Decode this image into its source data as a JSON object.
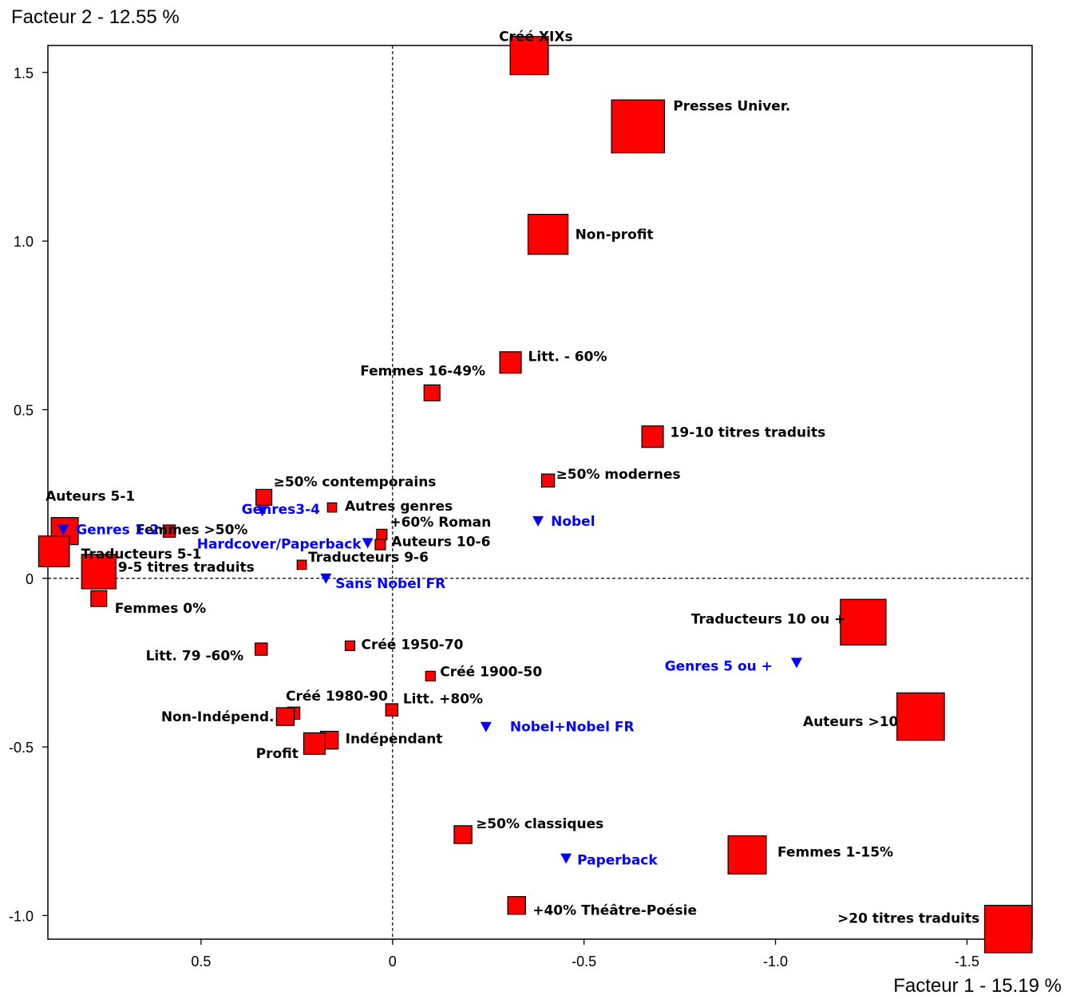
{
  "chart_data": {
    "type": "scatter",
    "title": "",
    "xlabel": "Facteur 1  -  15.19 %",
    "ylabel": "Facteur 2  -  12.55 %",
    "x_reversed": true,
    "xlim": [
      0.9,
      -1.67
    ],
    "ylim": [
      -1.07,
      1.58
    ],
    "x_ticks": [
      0.5,
      0,
      -0.5,
      -1.0,
      -1.5
    ],
    "x_tick_labels": [
      "0.5",
      "0",
      "-0.5",
      "-1.0",
      "-1.5"
    ],
    "y_ticks": [
      1.5,
      1.0,
      0.5,
      0,
      -0.5,
      -1.0
    ],
    "y_tick_labels": [
      "1.5",
      "1.0",
      "0.5",
      "0",
      "-0.5",
      "-1.0"
    ],
    "grid": false,
    "zero_lines": "dashed",
    "colors": {
      "active": "#ff0000",
      "supplementary": "#0000ff",
      "label_active": "#000000",
      "label_supplementary": "#0000ff"
    },
    "series": [
      {
        "kind": "active",
        "marker": "square",
        "points": [
          {
            "label": "Créé XIXs",
            "x": -0.357,
            "y": 1.55,
            "weight": 0.9
          },
          {
            "label": "Presses Univer.",
            "x": -0.641,
            "y": 1.34,
            "weight": 1.3
          },
          {
            "label": "Non-profit",
            "x": -0.406,
            "y": 1.02,
            "weight": 0.95
          },
          {
            "label": "Litt. - 60%",
            "x": -0.308,
            "y": 0.64,
            "weight": 0.45
          },
          {
            "label": "Femmes 16-49%",
            "x": -0.103,
            "y": 0.55,
            "weight": 0.3
          },
          {
            "label": "19-10 titres traduits",
            "x": -0.679,
            "y": 0.42,
            "weight": 0.45
          },
          {
            "label": "≥50% modernes",
            "x": -0.406,
            "y": 0.29,
            "weight": 0.22
          },
          {
            "label": "≥50% contemporains",
            "x": 0.336,
            "y": 0.24,
            "weight": 0.3
          },
          {
            "label": "Autres genres",
            "x": 0.158,
            "y": 0.21,
            "weight": 0.12
          },
          {
            "label": "Femmes >50%",
            "x": 0.583,
            "y": 0.14,
            "weight": 0.2
          },
          {
            "label": "+60% Roman",
            "x": 0.028,
            "y": 0.13,
            "weight": 0.15
          },
          {
            "label": "Auteurs 10-6",
            "x": 0.032,
            "y": 0.1,
            "weight": 0.15
          },
          {
            "label": "Auteurs 5-1",
            "x": 0.856,
            "y": 0.14,
            "weight": 0.6
          },
          {
            "label": "Traducteurs 5-1",
            "x": 0.884,
            "y": 0.08,
            "weight": 0.7
          },
          {
            "label": "9-5 titres traduits",
            "x": 0.767,
            "y": 0.02,
            "weight": 0.8
          },
          {
            "label": "Traducteurs 9-6",
            "x": 0.237,
            "y": 0.04,
            "weight": 0.12
          },
          {
            "label": "Femmes 0%",
            "x": 0.767,
            "y": -0.06,
            "weight": 0.3
          },
          {
            "label": "Créé 1950-70",
            "x": 0.111,
            "y": -0.2,
            "weight": 0.13
          },
          {
            "label": "Litt. 79 -60%",
            "x": 0.343,
            "y": -0.21,
            "weight": 0.2
          },
          {
            "label": "Créé 1900-50",
            "x": -0.099,
            "y": -0.29,
            "weight": 0.13
          },
          {
            "label": "Créé 1980-90",
            "x": 0.258,
            "y": -0.4,
            "weight": 0.2
          },
          {
            "label": "Litt. +80%",
            "x": 0.002,
            "y": -0.39,
            "weight": 0.2
          },
          {
            "label": "Non-Indépend.",
            "x": 0.28,
            "y": -0.41,
            "weight": 0.35
          },
          {
            "label": "Indépendant",
            "x": 0.165,
            "y": -0.48,
            "weight": 0.35
          },
          {
            "label": "Profit",
            "x": 0.204,
            "y": -0.49,
            "weight": 0.45
          },
          {
            "label": "≥50% classiques",
            "x": -0.184,
            "y": -0.76,
            "weight": 0.35
          },
          {
            "label": "+40% Théâtre-Poésie",
            "x": -0.324,
            "y": -0.97,
            "weight": 0.35
          },
          {
            "label": "Traducteurs 10 ou +",
            "x": -1.229,
            "y": -0.13,
            "weight": 1.1
          },
          {
            "label": "Auteurs >10",
            "x": -1.379,
            "y": -0.41,
            "weight": 1.15
          },
          {
            "label": "Femmes 1-15%",
            "x": -0.926,
            "y": -0.82,
            "weight": 0.9
          },
          {
            "label": ">20 titres traduits",
            "x": -1.608,
            "y": -1.04,
            "weight": 1.15
          }
        ]
      },
      {
        "kind": "supplementary",
        "marker": "triangle-down",
        "points": [
          {
            "label": "Genres 1-2",
            "x": 0.86,
            "y": 0.145
          },
          {
            "label": "Genres3-4",
            "x": 0.34,
            "y": 0.2
          },
          {
            "label": "Hardcover/Paperback",
            "x": 0.065,
            "y": 0.105
          },
          {
            "label": "Nobel",
            "x": -0.38,
            "y": 0.17
          },
          {
            "label": "Sans Nobel FR",
            "x": 0.174,
            "y": 0.0
          },
          {
            "label": "Genres 5 ou +",
            "x": -1.055,
            "y": -0.25
          },
          {
            "label": "Nobel+Nobel FR",
            "x": -0.244,
            "y": -0.44
          },
          {
            "label": "Paperback",
            "x": -0.453,
            "y": -0.83
          }
        ]
      }
    ]
  }
}
